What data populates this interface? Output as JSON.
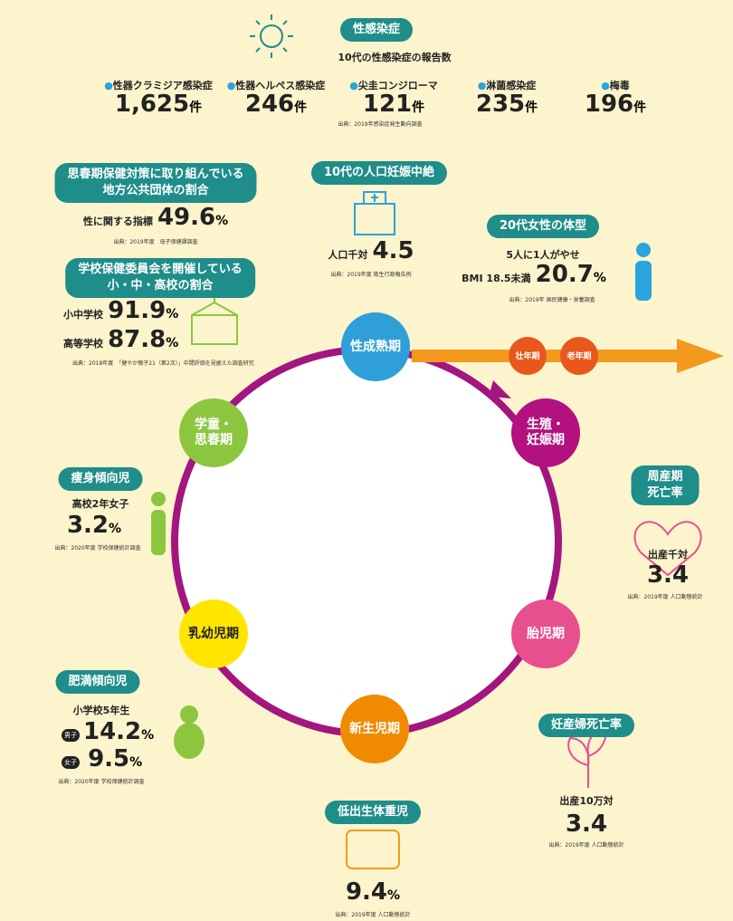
{
  "std": {
    "title": "性感染症",
    "subtitle": "10代の性感染症の報告数",
    "items": [
      {
        "name": "性器クラミジア感染症",
        "value": "1,625",
        "unit": "件"
      },
      {
        "name": "性器ヘルペス感染症",
        "value": "246",
        "unit": "件"
      },
      {
        "name": "尖圭コンジローマ",
        "value": "121",
        "unit": "件"
      },
      {
        "name": "淋菌感染症",
        "value": "235",
        "unit": "件"
      },
      {
        "name": "梅毒",
        "value": "196",
        "unit": "件"
      }
    ],
    "source": "出典：2019年感染症発生動向調査"
  },
  "puberty": {
    "title_lines": [
      "思春期保健対策に取り組んでいる",
      "地方公共団体の割合"
    ],
    "label": "性に関する指標",
    "value": "49.6",
    "unit": "%",
    "source": "出典：2019年度　母子保健課調査"
  },
  "school": {
    "title_lines": [
      "学校保健委員会を開催している",
      "小・中・高校の割合"
    ],
    "rows": [
      {
        "label": "小中学校",
        "value": "91.9",
        "unit": "%"
      },
      {
        "label": "高等学校",
        "value": "87.8",
        "unit": "%"
      }
    ],
    "source": "出典：2018年度　「健やか親子21（第2次）」中間評価を見据えた調査研究"
  },
  "abortion": {
    "title": "10代の人口妊娠中絶",
    "label": "人口千対",
    "value": "4.5",
    "source": "出典：2019年度 衛生行政報告例"
  },
  "body": {
    "title": "20代女性の体型",
    "line1": "5人に1人がやせ",
    "label": "BMI 18.5未満",
    "value": "20.7",
    "unit": "%",
    "source": "出典：2019年 国民健康・栄養調査"
  },
  "lean": {
    "title": "痩身傾向児",
    "label": "高校2年女子",
    "value": "3.2",
    "unit": "%",
    "source": "出典：2020年度 学校保健統計調査"
  },
  "obese": {
    "title": "肥満傾向児",
    "label": "小学校5年生",
    "rows": [
      {
        "sex": "男子",
        "value": "14.2",
        "unit": "%"
      },
      {
        "sex": "女子",
        "value": "9.5",
        "unit": "%"
      }
    ],
    "source": "出典：2020年度 学校保健統計調査"
  },
  "perinatal": {
    "title": "周産期死亡率",
    "label": "出産千対",
    "value": "3.4",
    "source": "出典：2019年度 人口動態統計"
  },
  "maternal": {
    "title": "妊産婦死亡率",
    "label": "出産10万対",
    "value": "3.4",
    "source": "出典：2019年度 人口動態統計"
  },
  "lbw": {
    "title": "低出生体重児",
    "value": "9.4",
    "unit": "%",
    "source": "出典：2019年度 人口動態統計"
  },
  "cycle": {
    "stages": [
      {
        "lines": [
          "性成熟期"
        ]
      },
      {
        "lines": [
          "生殖・",
          "妊娠期"
        ]
      },
      {
        "lines": [
          "胎児期"
        ]
      },
      {
        "lines": [
          "新生児期"
        ]
      },
      {
        "lines": [
          "乳幼児期"
        ]
      },
      {
        "lines": [
          "学童・",
          "思春期"
        ]
      }
    ],
    "arrow": [
      "壮年期",
      "老年期"
    ]
  }
}
